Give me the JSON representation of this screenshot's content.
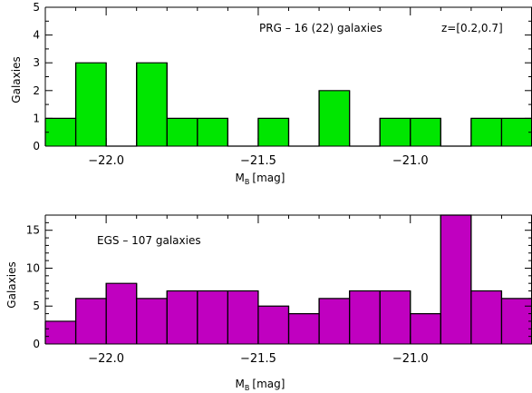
{
  "chart_data": [
    {
      "type": "bar",
      "annotation": "PRG – 16 (22) galaxies",
      "annotation2": "z=[0.2,0.7]",
      "xlabel": "M",
      "xlabel_sub": "B",
      "xlabel_unit": "[mag]",
      "ylabel": "Galaxies",
      "xlim": [
        -22.2,
        -20.6
      ],
      "ylim": [
        0,
        5
      ],
      "xticks": [
        -22.0,
        -21.5,
        -21.0
      ],
      "xtick_labels": [
        "−22.0",
        "−21.5",
        "−21.0"
      ],
      "yticks": [
        0,
        1,
        2,
        3,
        4,
        5
      ],
      "yticks_minor": [
        0.5,
        1.5,
        2.5,
        3.5,
        4.5
      ],
      "bin_edges": [
        -22.2,
        -22.1,
        -22.0,
        -21.9,
        -21.8,
        -21.7,
        -21.6,
        -21.5,
        -21.4,
        -21.3,
        -21.2,
        -21.1,
        -21.0,
        -20.9,
        -20.8,
        -20.7,
        -20.6
      ],
      "values": [
        1,
        3,
        0,
        3,
        1,
        1,
        0,
        1,
        0,
        2,
        0,
        1,
        1,
        0,
        1,
        1
      ],
      "color": "#00e600"
    },
    {
      "type": "bar",
      "annotation": "EGS – 107 galaxies",
      "xlabel": "M",
      "xlabel_sub": "B",
      "xlabel_unit": "[mag]",
      "ylabel": "Galaxies",
      "xlim": [
        -22.2,
        -20.6
      ],
      "ylim": [
        0,
        17
      ],
      "xticks": [
        -22.0,
        -21.5,
        -21.0
      ],
      "xtick_labels": [
        "−22.0",
        "−21.5",
        "−21.0"
      ],
      "yticks": [
        0,
        5,
        10,
        15
      ],
      "yticks_minor": [
        1,
        2,
        3,
        4,
        6,
        7,
        8,
        9,
        11,
        12,
        13,
        14,
        16
      ],
      "bin_edges": [
        -22.2,
        -22.1,
        -22.0,
        -21.9,
        -21.8,
        -21.7,
        -21.6,
        -21.5,
        -21.4,
        -21.3,
        -21.2,
        -21.1,
        -21.0,
        -20.9,
        -20.8,
        -20.7,
        -20.6
      ],
      "values": [
        3,
        6,
        8,
        6,
        7,
        7,
        7,
        5,
        4,
        6,
        7,
        7,
        4,
        17,
        7,
        6
      ],
      "color": "#c000c0"
    }
  ]
}
